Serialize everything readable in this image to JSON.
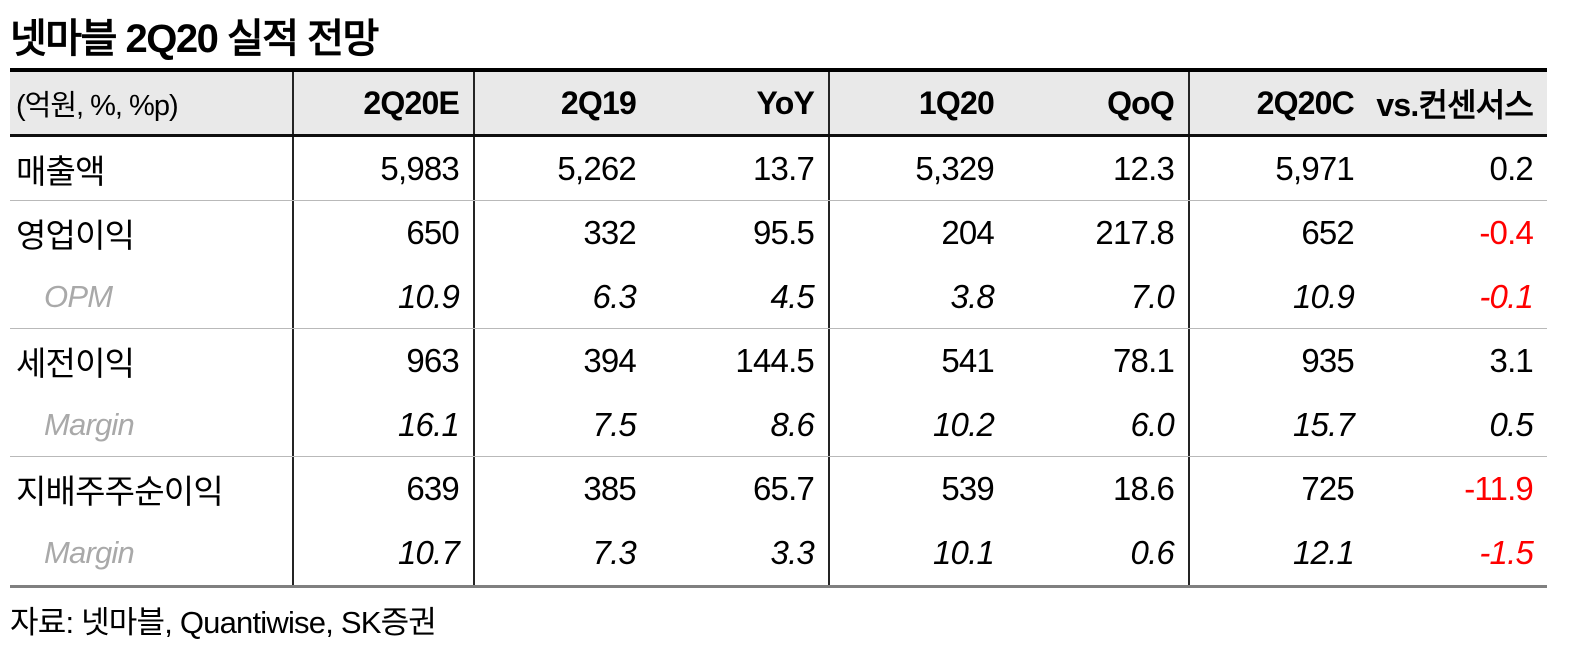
{
  "title": "넷마블 2Q20 실적 전망",
  "source": "자료: 넷마블, Quantiwise, SK증권",
  "colors": {
    "negative_value": "#ff0000",
    "header_background": "#e9e9e9",
    "sub_label_gray": "#a9a9a9",
    "grid_line": "#242424",
    "row_separator": "#b9b9b9"
  },
  "table": {
    "unit_label": "(억원, %, %p)",
    "columns": [
      "2Q20E",
      "2Q19",
      "YoY",
      "1Q20",
      "QoQ",
      "2Q20C",
      "vs.컨센서스"
    ],
    "rows": [
      {
        "label": "매출액",
        "type": "main",
        "values": [
          "5,983",
          "5,262",
          "13.7",
          "5,329",
          "12.3",
          "5,971",
          "0.2"
        ]
      },
      {
        "label": "영업이익",
        "type": "main",
        "values": [
          "650",
          "332",
          "95.5",
          "204",
          "217.8",
          "652",
          "-0.4"
        ]
      },
      {
        "label": "OPM",
        "type": "sub",
        "values": [
          "10.9",
          "6.3",
          "4.5",
          "3.8",
          "7.0",
          "10.9",
          "-0.1"
        ]
      },
      {
        "label": "세전이익",
        "type": "main",
        "values": [
          "963",
          "394",
          "144.5",
          "541",
          "78.1",
          "935",
          "3.1"
        ]
      },
      {
        "label": "Margin",
        "type": "sub",
        "values": [
          "16.1",
          "7.5",
          "8.6",
          "10.2",
          "6.0",
          "15.7",
          "0.5"
        ]
      },
      {
        "label": "지배주주순이익",
        "type": "main",
        "values": [
          "639",
          "385",
          "65.7",
          "539",
          "18.6",
          "725",
          "-11.9"
        ]
      },
      {
        "label": "Margin",
        "type": "sub",
        "values": [
          "10.7",
          "7.3",
          "3.3",
          "10.1",
          "0.6",
          "12.1",
          "-1.5"
        ]
      }
    ]
  }
}
